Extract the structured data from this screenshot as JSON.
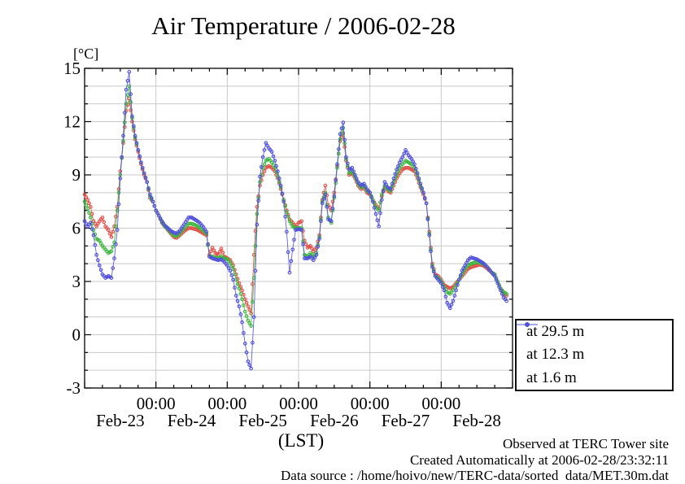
{
  "title": "Air Temperature / 2006-02-28",
  "y_axis": {
    "unit_label": "[°C]",
    "ticks": [
      15,
      12,
      9,
      6,
      3,
      0,
      -3
    ]
  },
  "x_axis": {
    "axis_label": "(LST)",
    "midnight_tick_labels": [
      "00:00",
      "00:00",
      "00:00",
      "00:00",
      "00:00"
    ],
    "day_labels": [
      "Feb-23",
      "Feb-24",
      "Feb-25",
      "Feb-26",
      "Feb-27",
      "Feb-28"
    ]
  },
  "annotations": {
    "observed": "Observed at TERC Tower site",
    "created": "Created Automatically at 2006-02-28/23:32:11",
    "data_source": "Data source : /home/hoivo/new/TERC-data/sorted  data/MET.30m.dat"
  },
  "chart_data": {
    "type": "line",
    "title": "Air Temperature / 2006-02-28",
    "xlabel": "(LST)",
    "ylabel": "[°C]",
    "ylim": [
      -3,
      15
    ],
    "x_unit": "hours since 2006-02-23 00:00 LST",
    "x_range_hours": [
      0,
      144
    ],
    "grid": true,
    "legend_position": "outside right bottom",
    "colors": {
      "grid": "#c9c9c9",
      "axis": "#000000"
    },
    "series": [
      {
        "name": "at 29.5 m",
        "color": "#e05048",
        "values": [
          7.9,
          7.6,
          7.2,
          6.4,
          6.1,
          6.4,
          6.6,
          6.1,
          5.9,
          5.5,
          6.1,
          7.2,
          9.2,
          10.8,
          12.6,
          13.3,
          12.0,
          11.0,
          10.3,
          9.6,
          9.0,
          8.6,
          7.7,
          7.5,
          7.0,
          6.7,
          6.3,
          6.1,
          5.9,
          5.7,
          5.5,
          5.45,
          5.6,
          5.75,
          5.9,
          6.0,
          6.0,
          5.95,
          5.9,
          5.8,
          5.7,
          5.6,
          4.5,
          4.9,
          4.6,
          4.5,
          4.85,
          4.4,
          4.3,
          4.2,
          3.9,
          3.4,
          2.9,
          2.5,
          2.0,
          1.6,
          1.2,
          4.5,
          7.2,
          8.4,
          9.0,
          9.4,
          9.5,
          9.4,
          9.2,
          8.8,
          8.2,
          7.6,
          7.0,
          6.5,
          6.3,
          6.1,
          6.3,
          6.4,
          5.3,
          4.9,
          5.0,
          4.7,
          4.9,
          5.6,
          7.6,
          8.4,
          7.3,
          7.0,
          8.0,
          9.5,
          10.9,
          11.35,
          9.8,
          9.0,
          9.1,
          8.8,
          8.4,
          8.2,
          8.3,
          8.0,
          7.9,
          7.6,
          7.3,
          7.1,
          7.8,
          8.3,
          8.1,
          8.0,
          8.4,
          8.8,
          9.1,
          9.3,
          9.4,
          9.4,
          9.3,
          9.2,
          8.8,
          8.3,
          7.9,
          7.4,
          5.8,
          4.0,
          3.4,
          3.3,
          3.1,
          2.8,
          2.7,
          2.6,
          2.7,
          2.9,
          3.1,
          3.3,
          3.5,
          3.7,
          3.8,
          3.85,
          3.9,
          3.95,
          3.9,
          3.8,
          3.65,
          3.5,
          3.4,
          3.0,
          2.6,
          2.3,
          2.2
        ]
      },
      {
        "name": "at 12.3 m",
        "color": "#3db83d",
        "values": [
          7.5,
          7.1,
          6.6,
          5.9,
          5.4,
          5.3,
          5.0,
          4.8,
          4.6,
          4.7,
          5.2,
          7.0,
          9.0,
          10.9,
          13.0,
          14.0,
          12.2,
          11.1,
          10.4,
          9.7,
          9.1,
          8.6,
          7.8,
          7.5,
          7.0,
          6.7,
          6.35,
          6.1,
          5.95,
          5.75,
          5.6,
          5.55,
          5.7,
          5.9,
          6.1,
          6.25,
          6.25,
          6.2,
          6.1,
          6.0,
          5.85,
          5.7,
          4.4,
          4.4,
          4.35,
          4.3,
          4.4,
          4.3,
          4.25,
          4.05,
          3.7,
          3.1,
          2.6,
          2.0,
          1.3,
          0.8,
          0.5,
          3.2,
          6.8,
          8.6,
          9.4,
          9.8,
          9.9,
          9.7,
          9.4,
          8.9,
          8.3,
          7.6,
          6.9,
          6.4,
          6.1,
          6.0,
          6.0,
          6.0,
          4.5,
          4.4,
          4.6,
          4.4,
          4.6,
          5.5,
          7.5,
          8.0,
          6.6,
          6.3,
          7.7,
          9.4,
          11.0,
          11.65,
          9.9,
          9.1,
          9.2,
          8.9,
          8.5,
          8.3,
          8.4,
          8.1,
          8.0,
          7.6,
          7.2,
          7.0,
          7.9,
          8.4,
          8.2,
          8.1,
          8.6,
          9.0,
          9.4,
          9.6,
          9.8,
          9.7,
          9.6,
          9.4,
          9.0,
          8.4,
          8.0,
          7.4,
          5.7,
          3.9,
          3.3,
          3.2,
          3.0,
          2.7,
          2.4,
          2.3,
          2.5,
          2.8,
          3.1,
          3.4,
          3.7,
          3.9,
          4.0,
          4.05,
          4.1,
          4.05,
          4.0,
          3.9,
          3.7,
          3.5,
          3.4,
          3.0,
          2.6,
          2.4,
          2.3
        ]
      },
      {
        "name": "at 1.6 m",
        "color": "#5050dd",
        "values": [
          6.4,
          6.1,
          6.3,
          5.6,
          4.5,
          3.9,
          3.4,
          3.2,
          3.3,
          3.2,
          4.3,
          5.9,
          8.8,
          11.2,
          13.8,
          14.8,
          12.3,
          11.2,
          10.4,
          9.7,
          9.1,
          8.6,
          7.9,
          7.5,
          7.0,
          6.7,
          6.4,
          6.15,
          6.0,
          5.85,
          5.75,
          5.7,
          5.85,
          6.1,
          6.35,
          6.6,
          6.6,
          6.5,
          6.4,
          6.25,
          6.05,
          5.8,
          4.4,
          4.3,
          4.25,
          4.2,
          4.25,
          4.1,
          3.9,
          3.6,
          3.1,
          2.2,
          1.6,
          0.7,
          -0.5,
          -1.5,
          -1.9,
          1.0,
          6.2,
          8.9,
          10.0,
          10.8,
          10.5,
          10.3,
          9.8,
          9.2,
          8.4,
          7.5,
          5.8,
          3.5,
          4.8,
          5.9,
          5.95,
          5.9,
          4.3,
          4.3,
          4.4,
          4.2,
          4.5,
          5.4,
          7.4,
          7.9,
          6.5,
          6.4,
          7.8,
          9.6,
          11.3,
          11.95,
          10.0,
          9.3,
          9.4,
          9.0,
          8.6,
          8.4,
          8.5,
          8.2,
          8.0,
          7.5,
          6.8,
          6.1,
          7.6,
          8.6,
          8.3,
          8.2,
          8.8,
          9.3,
          9.7,
          10.0,
          10.4,
          10.1,
          9.9,
          9.6,
          9.1,
          8.5,
          8.0,
          7.4,
          5.6,
          3.8,
          3.3,
          3.1,
          2.9,
          2.5,
          1.8,
          1.5,
          1.9,
          2.5,
          3.1,
          3.6,
          3.9,
          4.2,
          4.35,
          4.3,
          4.25,
          4.15,
          4.05,
          3.9,
          3.7,
          3.5,
          3.3,
          2.9,
          2.5,
          2.1,
          1.9
        ]
      }
    ]
  }
}
